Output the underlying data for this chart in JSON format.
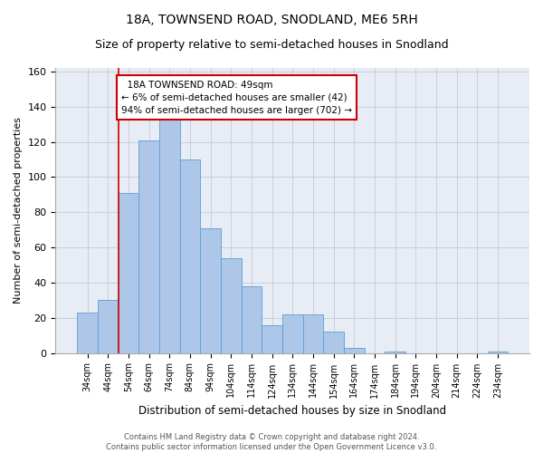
{
  "title": "18A, TOWNSEND ROAD, SNODLAND, ME6 5RH",
  "subtitle": "Size of property relative to semi-detached houses in Snodland",
  "xlabel": "Distribution of semi-detached houses by size in Snodland",
  "ylabel": "Number of semi-detached properties",
  "footer_line1": "Contains HM Land Registry data © Crown copyright and database right 2024.",
  "footer_line2": "Contains public sector information licensed under the Open Government Licence v3.0.",
  "categories": [
    "34sqm",
    "44sqm",
    "54sqm",
    "64sqm",
    "74sqm",
    "84sqm",
    "94sqm",
    "104sqm",
    "114sqm",
    "124sqm",
    "134sqm",
    "144sqm",
    "154sqm",
    "164sqm",
    "174sqm",
    "184sqm",
    "194sqm",
    "204sqm",
    "214sqm",
    "224sqm",
    "234sqm"
  ],
  "values": [
    23,
    30,
    91,
    121,
    133,
    110,
    71,
    54,
    38,
    16,
    22,
    22,
    12,
    3,
    0,
    1,
    0,
    0,
    0,
    0,
    1
  ],
  "bar_color": "#aec6e8",
  "bar_edge_color": "#5a9fd4",
  "bar_width": 1.0,
  "property_label": "18A TOWNSEND ROAD: 49sqm",
  "pct_smaller": 6,
  "count_smaller": 42,
  "pct_larger": 94,
  "count_larger": 702,
  "vline_color": "#cc0000",
  "annotation_box_color": "#cc0000",
  "ylim": [
    0,
    162
  ],
  "grid_color": "#c8d0dc",
  "background_color": "#e8edf5",
  "title_fontsize": 10,
  "subtitle_fontsize": 9,
  "xlabel_fontsize": 8.5,
  "ylabel_fontsize": 8,
  "annotation_fontsize": 7.5,
  "tick_fontsize": 7,
  "footer_fontsize": 6
}
